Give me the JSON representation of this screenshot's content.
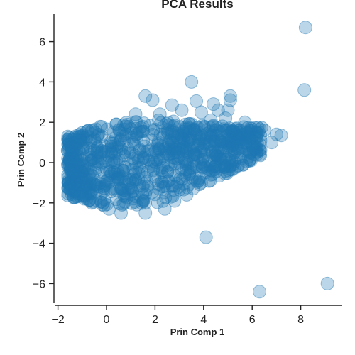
{
  "chart_data": {
    "type": "scatter",
    "title": "PCA Results",
    "xlabel": "Prin Comp 1",
    "ylabel": "Prin Comp 2",
    "xlim": [
      -2.1,
      9.6
    ],
    "ylim": [
      -7.0,
      7.35
    ],
    "xticks": [
      -2,
      0,
      2,
      4,
      6,
      8
    ],
    "yticks": [
      -6,
      -4,
      -2,
      0,
      2,
      4,
      6
    ],
    "xtick_labels": [
      "−2",
      "0",
      "2",
      "4",
      "6",
      "8"
    ],
    "ytick_labels": [
      "−6",
      "−4",
      "−2",
      "0",
      "2",
      "4",
      "6"
    ],
    "grid": false,
    "color": "#1f77b4",
    "points": [
      {
        "x": 8.2,
        "y": 6.7
      },
      {
        "x": 8.15,
        "y": 3.6
      },
      {
        "x": 3.5,
        "y": 4.0
      },
      {
        "x": 9.1,
        "y": -6.0
      },
      {
        "x": 6.3,
        "y": -6.4
      },
      {
        "x": 4.1,
        "y": -3.7
      },
      {
        "x": 1.6,
        "y": 3.3
      },
      {
        "x": 1.9,
        "y": 3.1
      },
      {
        "x": 3.7,
        "y": 3.05
      },
      {
        "x": 4.4,
        "y": 2.9
      },
      {
        "x": 5.1,
        "y": 3.3
      },
      {
        "x": 5.1,
        "y": 3.1
      },
      {
        "x": 4.6,
        "y": 2.6
      },
      {
        "x": 5.0,
        "y": 2.6
      },
      {
        "x": 4.9,
        "y": 2.2
      },
      {
        "x": 5.7,
        "y": 2.0
      },
      {
        "x": 6.5,
        "y": 1.6
      },
      {
        "x": 7.0,
        "y": 1.4
      },
      {
        "x": 6.1,
        "y": 1.2
      },
      {
        "x": 3.9,
        "y": 2.5
      },
      {
        "x": 3.1,
        "y": 2.6
      },
      {
        "x": 2.7,
        "y": 2.85
      },
      {
        "x": 2.2,
        "y": 2.4
      },
      {
        "x": 4.3,
        "y": 2.1
      },
      {
        "x": 5.3,
        "y": 1.5
      },
      {
        "x": 2.4,
        "y": -2.3
      },
      {
        "x": 3.3,
        "y": -1.6
      },
      {
        "x": 3.9,
        "y": -1.0
      },
      {
        "x": 2.8,
        "y": -1.9
      },
      {
        "x": 1.6,
        "y": -2.5
      },
      {
        "x": 0.6,
        "y": -2.5
      },
      {
        "x": 0.1,
        "y": -2.3
      },
      {
        "x": -0.6,
        "y": -2.0
      },
      {
        "x": -1.3,
        "y": -0.4
      },
      {
        "x": -1.6,
        "y": 0.6
      },
      {
        "x": -1.2,
        "y": 1.1
      },
      {
        "x": -0.8,
        "y": 1.3
      },
      {
        "x": 0.4,
        "y": 1.9
      },
      {
        "x": 1.2,
        "y": 2.4
      },
      {
        "x": 5.9,
        "y": 0.5
      },
      {
        "x": 6.8,
        "y": 1.0
      },
      {
        "x": 7.2,
        "y": 1.35
      }
    ]
  }
}
